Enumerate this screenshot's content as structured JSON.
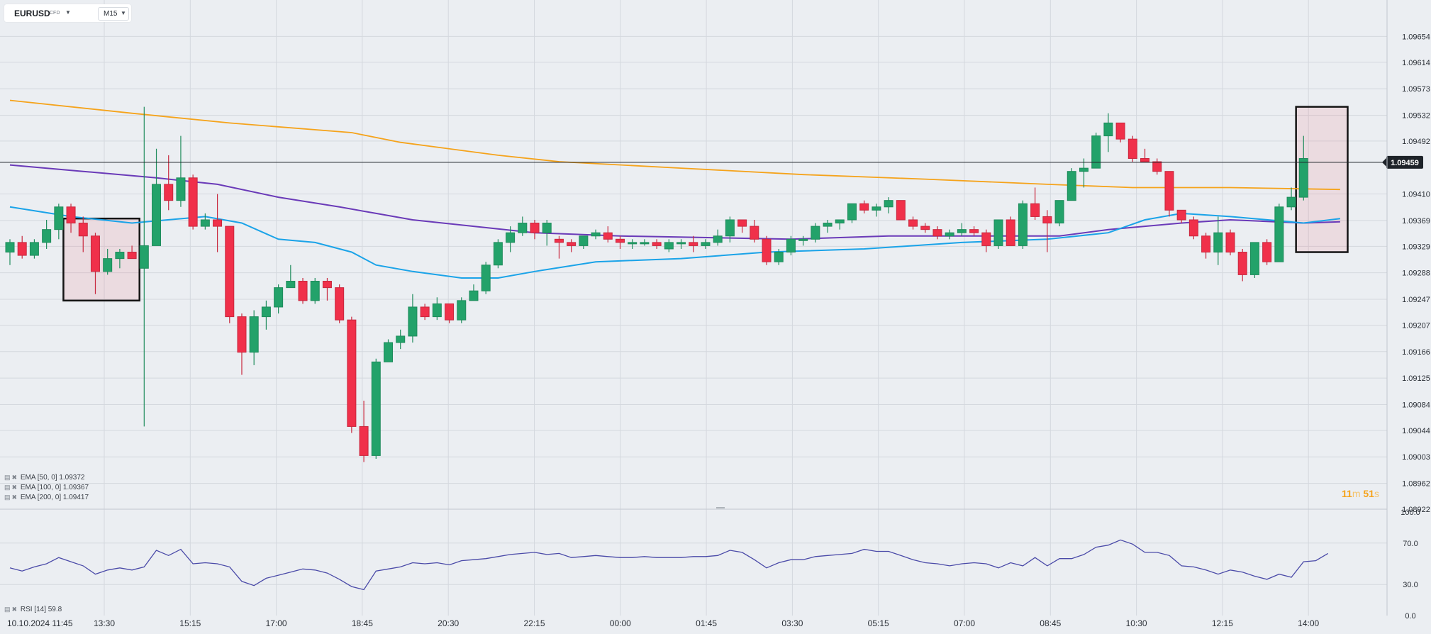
{
  "toolbar": {
    "symbol": "EURUSD",
    "symbol_type": "CFD",
    "timeframe": "M15"
  },
  "indicators": {
    "ema50": {
      "label": "EMA  [50, 0]  1.09372",
      "color": "#1aa3e8"
    },
    "ema100": {
      "label": "EMA  [100, 0]  1.09367",
      "color": "#6a3ab8"
    },
    "ema200": {
      "label": "EMA  [200, 0]  1.09417",
      "color": "#f5a31b"
    },
    "rsi": {
      "label": "RSI  [14]  59.8",
      "color": "#4a4aa8"
    }
  },
  "timer": {
    "minutes": "11",
    "minutes_unit": "m",
    "seconds": "51",
    "seconds_unit": "s"
  },
  "colors": {
    "bull": "#23a26a",
    "bear": "#f0304a",
    "grid": "#d4d8de",
    "price_label_bg": "#1e2329"
  },
  "chart_data": {
    "type": "candlestick",
    "symbol": "EURUSD",
    "timeframe": "M15",
    "y_ticks": [
      "1.09654",
      "1.09614",
      "1.09573",
      "1.09532",
      "1.09492",
      "1.09410",
      "1.09369",
      "1.09329",
      "1.09288",
      "1.09247",
      "1.09207",
      "1.09166",
      "1.09125",
      "1.09084",
      "1.09044",
      "1.09003",
      "1.08962",
      "1.08922"
    ],
    "ylim": [
      1.08922,
      1.09695
    ],
    "current_price": 1.09459,
    "current_price_label": "1.09459",
    "x_ticks": [
      "10.10.2024  11:45",
      "13:30",
      "15:15",
      "17:00",
      "18:45",
      "20:30",
      "22:15",
      "00:00",
      "01:45",
      "03:30",
      "05:15",
      "07:00",
      "08:45",
      "10:30",
      "12:15",
      "14:00"
    ],
    "candles": [
      [
        1.0932,
        1.0934,
        1.093,
        1.09335
      ],
      [
        1.09335,
        1.09345,
        1.0931,
        1.09315
      ],
      [
        1.09315,
        1.0934,
        1.0931,
        1.09335
      ],
      [
        1.09335,
        1.0937,
        1.09325,
        1.09355
      ],
      [
        1.09355,
        1.09395,
        1.0934,
        1.0939
      ],
      [
        1.0939,
        1.09395,
        1.0935,
        1.09365
      ],
      [
        1.09365,
        1.09375,
        1.0932,
        1.09345
      ],
      [
        1.09345,
        1.0935,
        1.09255,
        1.0929
      ],
      [
        1.0929,
        1.09325,
        1.09285,
        1.0931
      ],
      [
        1.0931,
        1.09325,
        1.09295,
        1.0932
      ],
      [
        1.0932,
        1.0933,
        1.0931,
        1.0931
      ],
      [
        1.09295,
        1.09545,
        1.0905,
        1.0933
      ],
      [
        1.0933,
        1.0948,
        1.0933,
        1.09425
      ],
      [
        1.09425,
        1.0947,
        1.09385,
        1.094
      ],
      [
        1.094,
        1.095,
        1.0939,
        1.09435
      ],
      [
        1.09435,
        1.0944,
        1.09355,
        1.0936
      ],
      [
        1.0936,
        1.0938,
        1.09355,
        1.0937
      ],
      [
        1.0937,
        1.0941,
        1.0932,
        1.0936
      ],
      [
        1.0936,
        1.0936,
        1.0921,
        1.0922
      ],
      [
        1.0922,
        1.09225,
        1.0913,
        1.09165
      ],
      [
        1.09165,
        1.0923,
        1.09145,
        1.0922
      ],
      [
        1.0922,
        1.09245,
        1.092,
        1.09235
      ],
      [
        1.09235,
        1.0927,
        1.09225,
        1.09265
      ],
      [
        1.09265,
        1.093,
        1.09265,
        1.09275
      ],
      [
        1.09275,
        1.0928,
        1.0924,
        1.09245
      ],
      [
        1.09245,
        1.0928,
        1.0924,
        1.09275
      ],
      [
        1.09275,
        1.0928,
        1.09245,
        1.09265
      ],
      [
        1.09265,
        1.0927,
        1.0921,
        1.09215
      ],
      [
        1.09215,
        1.0922,
        1.0904,
        1.0905
      ],
      [
        1.0905,
        1.0909,
        1.08995,
        1.09005
      ],
      [
        1.09005,
        1.09155,
        1.09,
        1.0915
      ],
      [
        1.0915,
        1.09185,
        1.0915,
        1.0918
      ],
      [
        1.0918,
        1.092,
        1.0917,
        1.0919
      ],
      [
        1.0919,
        1.09255,
        1.0918,
        1.09235
      ],
      [
        1.09235,
        1.0924,
        1.09215,
        1.0922
      ],
      [
        1.0922,
        1.0925,
        1.09215,
        1.0924
      ],
      [
        1.0924,
        1.0924,
        1.0921,
        1.09215
      ],
      [
        1.09215,
        1.0925,
        1.0921,
        1.09245
      ],
      [
        1.09245,
        1.0927,
        1.09245,
        1.0926
      ],
      [
        1.0926,
        1.09305,
        1.09255,
        1.093
      ],
      [
        1.093,
        1.0934,
        1.09295,
        1.09335
      ],
      [
        1.09335,
        1.0936,
        1.0932,
        1.0935
      ],
      [
        1.0935,
        1.09375,
        1.09345,
        1.09365
      ],
      [
        1.09365,
        1.0937,
        1.0934,
        1.0935
      ],
      [
        1.0935,
        1.0937,
        1.0933,
        1.09365
      ],
      [
        1.0934,
        1.09345,
        1.0931,
        1.09335
      ],
      [
        1.09335,
        1.0934,
        1.0932,
        1.0933
      ],
      [
        1.0933,
        1.09345,
        1.09325,
        1.09345
      ],
      [
        1.09345,
        1.09355,
        1.0934,
        1.0935
      ],
      [
        1.0935,
        1.0936,
        1.09335,
        1.0934
      ],
      [
        1.0934,
        1.09345,
        1.09325,
        1.09335
      ],
      [
        1.09335,
        1.0934,
        1.09325,
        1.09335
      ],
      [
        1.09335,
        1.0934,
        1.0933,
        1.09335
      ],
      [
        1.09335,
        1.0934,
        1.09325,
        1.0933
      ],
      [
        1.09325,
        1.0934,
        1.0932,
        1.09335
      ],
      [
        1.09335,
        1.0934,
        1.09325,
        1.09335
      ],
      [
        1.09335,
        1.09345,
        1.0932,
        1.0933
      ],
      [
        1.0933,
        1.0934,
        1.09325,
        1.09335
      ],
      [
        1.09335,
        1.09355,
        1.0933,
        1.09345
      ],
      [
        1.09345,
        1.09375,
        1.09335,
        1.0937
      ],
      [
        1.0937,
        1.0937,
        1.0935,
        1.0936
      ],
      [
        1.0936,
        1.0937,
        1.09335,
        1.0934
      ],
      [
        1.0934,
        1.09345,
        1.093,
        1.09305
      ],
      [
        1.09305,
        1.09325,
        1.093,
        1.0932
      ],
      [
        1.0932,
        1.09345,
        1.09315,
        1.0934
      ],
      [
        1.0934,
        1.09345,
        1.0933,
        1.0934
      ],
      [
        1.0934,
        1.09365,
        1.09335,
        1.0936
      ],
      [
        1.0936,
        1.0937,
        1.0935,
        1.09365
      ],
      [
        1.09365,
        1.0937,
        1.09355,
        1.0937
      ],
      [
        1.0937,
        1.09395,
        1.09365,
        1.09395
      ],
      [
        1.09395,
        1.094,
        1.0938,
        1.09385
      ],
      [
        1.09385,
        1.09395,
        1.09375,
        1.0939
      ],
      [
        1.0939,
        1.09405,
        1.0938,
        1.094
      ],
      [
        1.094,
        1.094,
        1.0937,
        1.0937
      ],
      [
        1.0937,
        1.09375,
        1.09355,
        1.0936
      ],
      [
        1.0936,
        1.09365,
        1.0935,
        1.09355
      ],
      [
        1.09355,
        1.0936,
        1.0934,
        1.09345
      ],
      [
        1.09345,
        1.09355,
        1.0934,
        1.0935
      ],
      [
        1.0935,
        1.09365,
        1.09345,
        1.09355
      ],
      [
        1.09355,
        1.0936,
        1.09345,
        1.0935
      ],
      [
        1.0935,
        1.09355,
        1.0932,
        1.0933
      ],
      [
        1.0933,
        1.0937,
        1.09325,
        1.0937
      ],
      [
        1.0937,
        1.09375,
        1.0933,
        1.0933
      ],
      [
        1.0933,
        1.094,
        1.09325,
        1.09395
      ],
      [
        1.09395,
        1.0942,
        1.0937,
        1.09375
      ],
      [
        1.09375,
        1.09385,
        1.0932,
        1.09365
      ],
      [
        1.09365,
        1.094,
        1.0936,
        1.094
      ],
      [
        1.094,
        1.0945,
        1.094,
        1.09445
      ],
      [
        1.09445,
        1.09465,
        1.0942,
        1.0945
      ],
      [
        1.0945,
        1.09505,
        1.0945,
        1.095
      ],
      [
        1.095,
        1.09535,
        1.09475,
        1.0952
      ],
      [
        1.0952,
        1.0952,
        1.0949,
        1.09495
      ],
      [
        1.09495,
        1.095,
        1.0946,
        1.09465
      ],
      [
        1.09465,
        1.0948,
        1.0946,
        1.0946
      ],
      [
        1.0946,
        1.09465,
        1.0944,
        1.09445
      ],
      [
        1.09445,
        1.09445,
        1.09375,
        1.09385
      ],
      [
        1.09385,
        1.09385,
        1.09365,
        1.0937
      ],
      [
        1.0937,
        1.09375,
        1.0934,
        1.09345
      ],
      [
        1.09345,
        1.0935,
        1.0931,
        1.0932
      ],
      [
        1.0932,
        1.09375,
        1.093,
        1.0935
      ],
      [
        1.0935,
        1.09355,
        1.09315,
        1.0932
      ],
      [
        1.0932,
        1.09325,
        1.09275,
        1.09285
      ],
      [
        1.09285,
        1.09335,
        1.0928,
        1.09335
      ],
      [
        1.09335,
        1.0934,
        1.093,
        1.09305
      ],
      [
        1.09305,
        1.09395,
        1.09305,
        1.0939
      ],
      [
        1.0939,
        1.0942,
        1.09385,
        1.09405
      ],
      [
        1.09405,
        1.095,
        1.094,
        1.09465
      ]
    ],
    "ema50": [
      [
        0,
        1.0939
      ],
      [
        5,
        1.09375
      ],
      [
        10,
        1.09365
      ],
      [
        16,
        1.09375
      ],
      [
        19,
        1.09365
      ],
      [
        22,
        1.0934
      ],
      [
        25,
        1.09335
      ],
      [
        28,
        1.0932
      ],
      [
        30,
        1.093
      ],
      [
        33,
        1.0929
      ],
      [
        37,
        1.0928
      ],
      [
        40,
        1.0928
      ],
      [
        43,
        1.0929
      ],
      [
        48,
        1.09305
      ],
      [
        55,
        1.0931
      ],
      [
        62,
        1.0932
      ],
      [
        70,
        1.09325
      ],
      [
        78,
        1.09335
      ],
      [
        85,
        1.0934
      ],
      [
        90,
        1.0935
      ],
      [
        93,
        1.0937
      ],
      [
        96,
        1.0938
      ],
      [
        100,
        1.09375
      ],
      [
        106,
        1.09365
      ],
      [
        109,
        1.09372
      ]
    ],
    "ema100": [
      [
        0,
        1.09455
      ],
      [
        6,
        1.09445
      ],
      [
        12,
        1.09435
      ],
      [
        17,
        1.09425
      ],
      [
        22,
        1.09405
      ],
      [
        27,
        1.0939
      ],
      [
        30,
        1.0938
      ],
      [
        33,
        1.0937
      ],
      [
        38,
        1.0936
      ],
      [
        43,
        1.0935
      ],
      [
        50,
        1.09345
      ],
      [
        56,
        1.09343
      ],
      [
        64,
        1.0934
      ],
      [
        72,
        1.09345
      ],
      [
        80,
        1.09345
      ],
      [
        86,
        1.09345
      ],
      [
        90,
        1.09355
      ],
      [
        96,
        1.09365
      ],
      [
        100,
        1.0937
      ],
      [
        106,
        1.09365
      ],
      [
        109,
        1.09367
      ]
    ],
    "ema200": [
      [
        0,
        1.09555
      ],
      [
        10,
        1.09535
      ],
      [
        18,
        1.0952
      ],
      [
        28,
        1.09505
      ],
      [
        32,
        1.0949
      ],
      [
        40,
        1.0947
      ],
      [
        45,
        1.0946
      ],
      [
        55,
        1.0945
      ],
      [
        65,
        1.0944
      ],
      [
        75,
        1.09433
      ],
      [
        85,
        1.09425
      ],
      [
        92,
        1.0942
      ],
      [
        96,
        1.0942
      ],
      [
        100,
        1.0942
      ],
      [
        106,
        1.09418
      ],
      [
        109,
        1.09417
      ]
    ],
    "rsi": [
      46,
      43,
      47,
      50,
      56,
      52,
      48,
      40,
      44,
      46,
      44,
      47,
      63,
      58,
      64,
      50,
      51,
      50,
      47,
      33,
      29,
      36,
      39,
      42,
      45,
      44,
      41,
      35,
      28,
      25,
      43,
      45,
      47,
      51,
      50,
      51,
      49,
      53,
      54,
      55,
      57,
      59,
      60,
      61,
      59,
      60,
      56,
      57,
      58,
      57,
      56,
      56,
      57,
      56,
      56,
      56,
      57,
      57,
      58,
      63,
      61,
      54,
      46,
      51,
      54,
      54,
      57,
      58,
      59,
      60,
      64,
      62,
      62,
      58,
      54,
      51,
      50,
      48,
      50,
      51,
      50,
      46,
      51,
      48,
      56,
      48,
      55,
      55,
      59,
      66,
      68,
      73,
      69,
      61,
      61,
      58,
      48,
      47,
      44,
      40,
      44,
      42,
      38,
      35,
      40,
      37,
      52,
      53,
      60
    ],
    "rsi_ticks": [
      "100.0",
      "70.0",
      "30.0",
      "0.0"
    ],
    "rsi_lim": [
      0,
      100
    ],
    "highlight_boxes": [
      {
        "from": 5,
        "to": 10,
        "low": 1.09245,
        "high": 1.09372
      },
      {
        "from": 106,
        "to": 109,
        "low": 1.0932,
        "high": 1.09545
      }
    ]
  }
}
